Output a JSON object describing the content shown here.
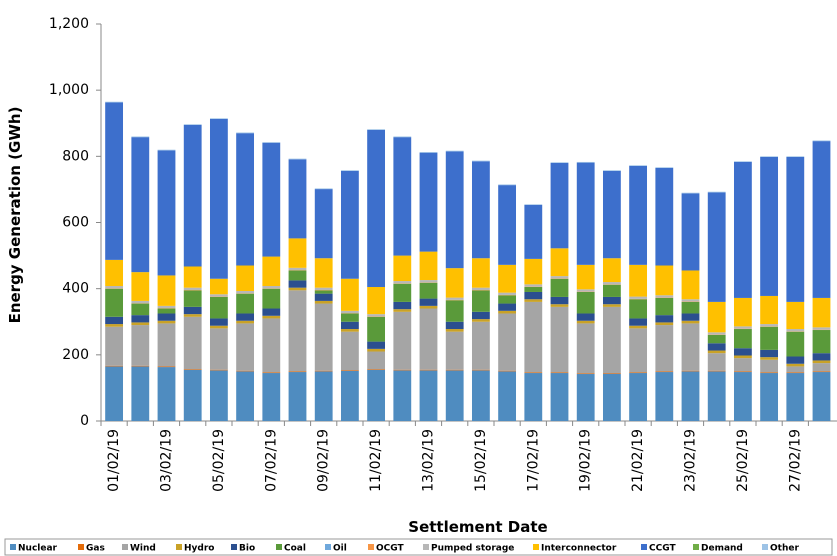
{
  "chart_data": {
    "type": "stacked-bar",
    "xlabel": "Settlement Date",
    "ylabel": "Energy Generation (GWh)",
    "categories": [
      "01/02/19",
      null,
      "03/02/19",
      null,
      "05/02/19",
      null,
      "07/02/19",
      null,
      "09/02/19",
      null,
      "11/02/19",
      null,
      "13/02/19",
      null,
      "15/02/19",
      null,
      "17/02/19",
      null,
      "19/02/19",
      null,
      "21/02/19",
      null,
      "23/02/19",
      null,
      "25/02/19",
      null,
      "27/02/19",
      null
    ],
    "ylim": [
      0,
      1200
    ],
    "yticks": [
      0,
      200,
      400,
      600,
      800,
      {
        "value": 1000,
        "label": "1,000"
      },
      {
        "value": 1200,
        "label": "1,200"
      }
    ],
    "grid": false,
    "series": [
      {
        "name": "Nuclear",
        "color": "#4f8cc0",
        "values": [
          165,
          165,
          163,
          155,
          153,
          150,
          145,
          148,
          150,
          152,
          155,
          153,
          153,
          153,
          153,
          150,
          145,
          145,
          142,
          143,
          145,
          148,
          150,
          150,
          148,
          145,
          145,
          148
        ]
      },
      {
        "name": "Gas",
        "color": "#e46c0a",
        "values": [
          2,
          2,
          2,
          2,
          2,
          2,
          2,
          2,
          2,
          2,
          2,
          2,
          2,
          2,
          2,
          2,
          2,
          2,
          2,
          2,
          2,
          2,
          2,
          2,
          2,
          2,
          2,
          2
        ]
      },
      {
        "name": "Wind",
        "color": "#a5a5a5",
        "values": [
          118,
          123,
          130,
          158,
          125,
          143,
          163,
          245,
          203,
          116,
          53,
          175,
          185,
          115,
          145,
          173,
          213,
          198,
          151,
          200,
          133,
          140,
          143,
          53,
          40,
          38,
          18,
          25
        ]
      },
      {
        "name": "Hydro",
        "color": "#c9a227",
        "values": [
          8,
          8,
          8,
          8,
          8,
          8,
          8,
          8,
          8,
          8,
          8,
          8,
          8,
          8,
          8,
          8,
          8,
          8,
          8,
          8,
          8,
          8,
          8,
          8,
          8,
          8,
          8,
          8
        ]
      },
      {
        "name": "Bio",
        "color": "#2b4f8f",
        "values": [
          22,
          22,
          22,
          22,
          22,
          22,
          22,
          22,
          22,
          22,
          22,
          22,
          22,
          22,
          22,
          22,
          22,
          22,
          22,
          22,
          22,
          22,
          22,
          22,
          22,
          22,
          22,
          22
        ]
      },
      {
        "name": "Coal",
        "color": "#5a9a3a",
        "values": [
          85,
          35,
          15,
          50,
          65,
          60,
          60,
          30,
          10,
          25,
          75,
          55,
          48,
          65,
          65,
          25,
          15,
          55,
          65,
          37,
          58,
          52,
          35,
          25,
          58,
          70,
          75,
          70
        ]
      },
      {
        "name": "Oil",
        "color": "#6fa8dc",
        "values": [
          0,
          0,
          0,
          0,
          0,
          0,
          0,
          0,
          0,
          0,
          0,
          0,
          0,
          0,
          0,
          0,
          0,
          0,
          0,
          0,
          0,
          0,
          0,
          0,
          0,
          0,
          0,
          0
        ]
      },
      {
        "name": "OCGT",
        "color": "#f79646",
        "values": [
          1,
          1,
          1,
          1,
          1,
          1,
          1,
          1,
          1,
          1,
          1,
          1,
          1,
          1,
          1,
          1,
          1,
          1,
          1,
          1,
          1,
          1,
          1,
          1,
          1,
          1,
          1,
          1
        ]
      },
      {
        "name": "Pumped storage",
        "color": "#b7b7b7",
        "values": [
          7,
          7,
          7,
          7,
          7,
          7,
          7,
          7,
          7,
          7,
          7,
          7,
          7,
          7,
          7,
          7,
          7,
          7,
          7,
          7,
          7,
          7,
          7,
          7,
          7,
          7,
          7,
          7
        ]
      },
      {
        "name": "Interconnector",
        "color": "#ffc000",
        "values": [
          79,
          87,
          92,
          64,
          47,
          77,
          89,
          89,
          89,
          97,
          82,
          77,
          86,
          89,
          89,
          84,
          77,
          84,
          74,
          72,
          96,
          90,
          87,
          92,
          86,
          85,
          82,
          89
        ]
      },
      {
        "name": "CCGT",
        "color": "#3d6fcc",
        "values": [
          476,
          408,
          378,
          428,
          483,
          400,
          344,
          239,
          209,
          326,
          475,
          358,
          299,
          353,
          293,
          241,
          163,
          258,
          309,
          264,
          299,
          295,
          233,
          331,
          411,
          420,
          438,
          474
        ]
      },
      {
        "name": "Demand",
        "color": "#70ad47",
        "values": [
          0,
          0,
          0,
          0,
          0,
          0,
          0,
          0,
          0,
          0,
          0,
          0,
          0,
          0,
          0,
          0,
          0,
          0,
          0,
          0,
          0,
          0,
          0,
          0,
          0,
          0,
          0,
          0
        ]
      },
      {
        "name": "Other",
        "color": "#9dc3e6",
        "values": [
          2,
          2,
          2,
          2,
          2,
          2,
          2,
          2,
          2,
          2,
          2,
          2,
          2,
          2,
          2,
          2,
          2,
          2,
          2,
          2,
          2,
          2,
          2,
          2,
          2,
          2,
          2,
          2
        ]
      }
    ]
  }
}
